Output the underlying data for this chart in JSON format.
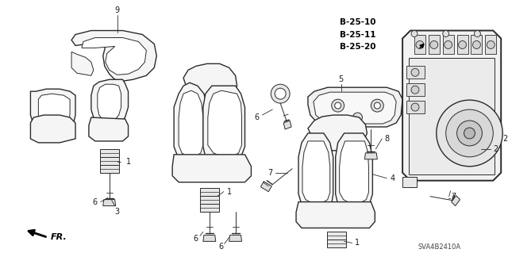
{
  "background_color": "#ffffff",
  "figsize": [
    6.4,
    3.19
  ],
  "dpi": 100,
  "ref_codes": [
    "B-25-10",
    "B-25-11",
    "B-25-20"
  ],
  "fr_text": "FR.",
  "svg_ref": "SVA4B2410A",
  "line_color": "#2a2a2a",
  "text_color": "#1a1a1a",
  "label_fontsize": 7,
  "ref_fontsize": 7.5,
  "svg_fontsize": 6
}
